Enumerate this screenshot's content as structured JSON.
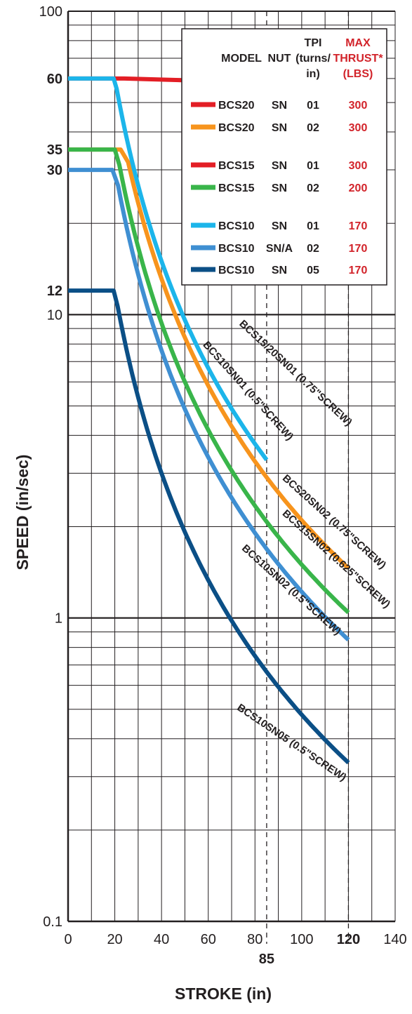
{
  "chart_data": {
    "type": "line",
    "xlabel": "STROKE (in)",
    "ylabel": "SPEED (in/sec)",
    "xlim": [
      0,
      140
    ],
    "ylim": [
      0.1,
      100
    ],
    "y_scale": "log",
    "grid": true,
    "legend_position": "top-right",
    "x_ticks": [
      "0",
      "20",
      "40",
      "60",
      "80",
      "100",
      "120",
      "140"
    ],
    "x_bold_ticks": [
      {
        "value": 85,
        "label": "85"
      },
      {
        "value": 120,
        "label": "120"
      }
    ],
    "y_ticks": [
      {
        "value": 100,
        "label": "100"
      },
      {
        "value": 10,
        "label": "10"
      },
      {
        "value": 1,
        "label": "1"
      },
      {
        "value": 0.1,
        "label": "0.1"
      }
    ],
    "y_bold_ticks": [
      {
        "value": 60,
        "label": "60"
      },
      {
        "value": 35,
        "label": "35"
      },
      {
        "value": 30,
        "label": "30"
      },
      {
        "value": 12,
        "label": "12"
      }
    ],
    "reference_lines_x": [
      85,
      120
    ],
    "legend": {
      "headers": {
        "model": "MODEL",
        "nut": "NUT",
        "tpi": [
          "TPI",
          "(turns/",
          "in)"
        ],
        "thrust": [
          "MAX",
          "THRUST*",
          "(LBS)"
        ]
      },
      "rows": [
        {
          "model": "BCS20",
          "nut": "SN",
          "tpi": "01",
          "thrust": "300",
          "color": "#e31e25"
        },
        {
          "model": "BCS20",
          "nut": "SN",
          "tpi": "02",
          "thrust": "300",
          "color": "#f7941d"
        },
        {
          "model": "BCS15",
          "nut": "SN",
          "tpi": "01",
          "thrust": "300",
          "color": "#e31e25"
        },
        {
          "model": "BCS15",
          "nut": "SN",
          "tpi": "02",
          "thrust": "200",
          "color": "#39b54a"
        },
        {
          "model": "BCS10",
          "nut": "SN",
          "tpi": "01",
          "thrust": "170",
          "color": "#1cb5ea"
        },
        {
          "model": "BCS10",
          "nut": "SN/A",
          "tpi": "02",
          "thrust": "170",
          "color": "#3f8fd2"
        },
        {
          "model": "BCS10",
          "nut": "SN",
          "tpi": "05",
          "thrust": "170",
          "color": "#0b4f86"
        }
      ]
    },
    "series": [
      {
        "color": "#e31e25",
        "label": "BCS15/20SN01 (0.75\"SCREW)",
        "flat_speed": 60,
        "knee_stroke": 24,
        "k": 250000,
        "max_stroke": 120
      },
      {
        "color": "#f7941d",
        "label": "BCS20SN02 (0.75\"SCREW)",
        "flat_speed": 35,
        "knee_stroke": 22.5,
        "k": 21000,
        "max_stroke": 120
      },
      {
        "color": "#39b54a",
        "label": "BCS15SN02 (0.625\"SCREW)",
        "flat_speed": 35,
        "knee_stroke": 20,
        "k": 15000,
        "max_stroke": 120
      },
      {
        "color": "#1cb5ea",
        "label": "BCS10SN01 (0.5\"SCREW)",
        "flat_speed": 60,
        "knee_stroke": 19.5,
        "k": 24000,
        "max_stroke": 85
      },
      {
        "color": "#3f8fd2",
        "label": "BCS10SN02 (0.5\"SCREW)",
        "flat_speed": 30,
        "knee_stroke": 19,
        "k": 12200,
        "max_stroke": 120
      },
      {
        "color": "#0b4f86",
        "label": "BCS10SN05 (0.5\"SCREW)",
        "flat_speed": 12,
        "knee_stroke": 19.5,
        "k": 4800,
        "max_stroke": 120
      }
    ]
  }
}
